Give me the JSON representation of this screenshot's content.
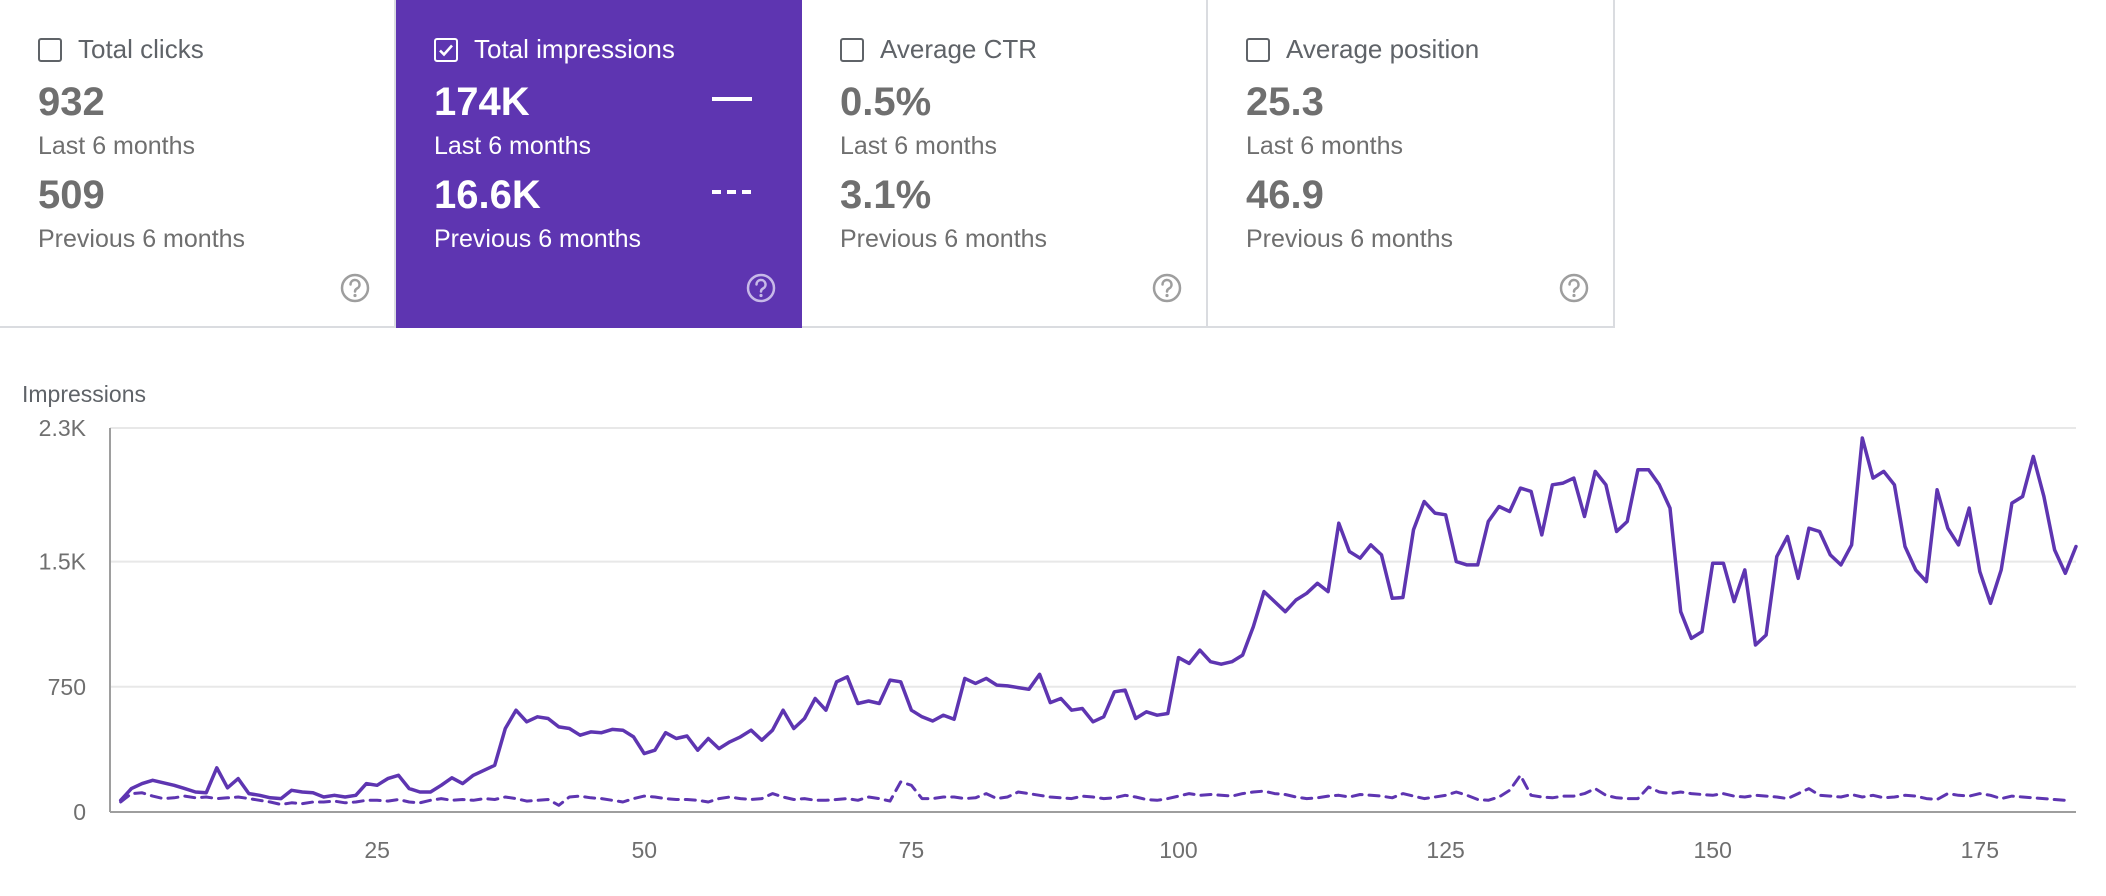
{
  "cards": [
    {
      "label": "Total clicks",
      "checked": false,
      "value_current": "932",
      "period_current": "Last 6 months",
      "value_previous": "509",
      "period_previous": "Previous 6 months",
      "help_icon": "help-circle-icon"
    },
    {
      "label": "Total impressions",
      "checked": true,
      "value_current": "174K",
      "period_current": "Last 6 months",
      "value_previous": "16.6K",
      "period_previous": "Previous 6 months",
      "help_icon": "help-circle-icon"
    },
    {
      "label": "Average CTR",
      "checked": false,
      "value_current": "0.5%",
      "period_current": "Last 6 months",
      "value_previous": "3.1%",
      "period_previous": "Previous 6 months",
      "help_icon": "help-circle-icon"
    },
    {
      "label": "Average position",
      "checked": false,
      "value_current": "25.3",
      "period_current": "Last 6 months",
      "value_previous": "46.9",
      "period_previous": "Previous 6 months",
      "help_icon": "help-circle-icon"
    }
  ],
  "colors": {
    "accent": "#5e35b1",
    "line": "#5e35b1",
    "grid": "#e8e8e8",
    "axis": "#9e9e9e",
    "text": "#5f6368"
  },
  "chart_data": {
    "type": "line",
    "title": "",
    "ylabel": "Impressions",
    "xlabel": "",
    "xlim": [
      0,
      184
    ],
    "ylim": [
      0,
      2300
    ],
    "yticks": [
      0,
      750,
      1500,
      2300
    ],
    "ytick_labels": [
      "0",
      "750",
      "1.5K",
      "2.3K"
    ],
    "xticks": [
      25,
      50,
      75,
      100,
      125,
      150,
      175
    ],
    "xtick_labels": [
      "25",
      "50",
      "75",
      "100",
      "125",
      "150",
      "175"
    ],
    "grid": true,
    "series": [
      {
        "name": "Last 6 months",
        "style": "solid",
        "x_start": 1,
        "values": [
          70,
          140,
          170,
          190,
          175,
          160,
          140,
          120,
          115,
          265,
          145,
          200,
          110,
          100,
          85,
          80,
          130,
          120,
          115,
          90,
          100,
          90,
          100,
          170,
          160,
          200,
          220,
          140,
          120,
          120,
          160,
          205,
          170,
          220,
          250,
          280,
          500,
          610,
          540,
          570,
          560,
          510,
          500,
          460,
          480,
          475,
          495,
          490,
          450,
          350,
          370,
          475,
          440,
          455,
          370,
          440,
          380,
          420,
          450,
          490,
          430,
          490,
          610,
          500,
          560,
          680,
          610,
          780,
          810,
          650,
          665,
          650,
          790,
          780,
          610,
          570,
          545,
          580,
          555,
          800,
          770,
          800,
          760,
          755,
          745,
          735,
          825,
          655,
          680,
          610,
          620,
          540,
          570,
          720,
          730,
          560,
          600,
          580,
          590,
          925,
          890,
          970,
          900,
          885,
          900,
          940,
          1110,
          1320,
          1260,
          1200,
          1270,
          1310,
          1370,
          1320,
          1730,
          1560,
          1520,
          1600,
          1540,
          1280,
          1285,
          1690,
          1860,
          1790,
          1780,
          1500,
          1480,
          1480,
          1740,
          1830,
          1800,
          1940,
          1920,
          1660,
          1960,
          1970,
          2000,
          1770,
          2040,
          1960,
          1680,
          1740,
          2050,
          2050,
          1960,
          1820,
          1200,
          1040,
          1080,
          1490,
          1490,
          1260,
          1450,
          1000,
          1060,
          1530,
          1650,
          1400,
          1700,
          1680,
          1540,
          1480,
          1600,
          2240,
          2000,
          2040,
          1960,
          1590,
          1450,
          1380,
          1930,
          1700,
          1600,
          1820,
          1440,
          1250,
          1450,
          1850,
          1890,
          2130,
          1890,
          1570,
          1430,
          1590
        ]
      },
      {
        "name": "Previous 6 months",
        "style": "dashed",
        "x_start": 1,
        "values": [
          60,
          110,
          115,
          95,
          80,
          85,
          95,
          85,
          90,
          80,
          85,
          90,
          80,
          70,
          60,
          45,
          55,
          50,
          60,
          60,
          65,
          55,
          60,
          70,
          70,
          65,
          75,
          60,
          55,
          70,
          80,
          70,
          75,
          70,
          80,
          75,
          90,
          80,
          65,
          70,
          75,
          40,
          90,
          95,
          85,
          80,
          70,
          60,
          80,
          95,
          90,
          80,
          75,
          75,
          70,
          60,
          80,
          90,
          80,
          75,
          80,
          110,
          90,
          75,
          80,
          70,
          70,
          75,
          80,
          70,
          90,
          80,
          65,
          180,
          160,
          80,
          80,
          90,
          90,
          80,
          85,
          110,
          80,
          90,
          120,
          110,
          100,
          90,
          85,
          80,
          95,
          90,
          80,
          85,
          100,
          90,
          75,
          70,
          80,
          95,
          110,
          100,
          105,
          100,
          95,
          110,
          120,
          125,
          110,
          105,
          90,
          80,
          85,
          95,
          100,
          90,
          105,
          100,
          95,
          85,
          110,
          95,
          80,
          90,
          100,
          120,
          100,
          75,
          70,
          90,
          130,
          220,
          100,
          90,
          85,
          95,
          95,
          110,
          140,
          100,
          85,
          80,
          80,
          150,
          120,
          110,
          120,
          110,
          105,
          100,
          110,
          95,
          90,
          100,
          95,
          90,
          80,
          110,
          140,
          100,
          95,
          90,
          105,
          90,
          100,
          85,
          90,
          100,
          95,
          80,
          75,
          110,
          100,
          95,
          110,
          100,
          80,
          95,
          90,
          85,
          80,
          75,
          70
        ]
      }
    ]
  }
}
